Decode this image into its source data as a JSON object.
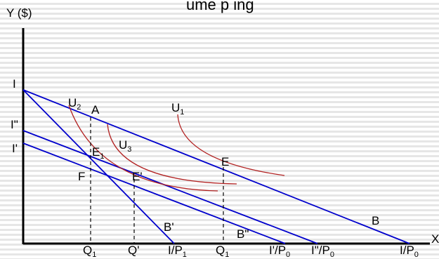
{
  "header_fragment": "ume p ing",
  "axes": {
    "y_label": "Y ($)",
    "x_label": "X"
  },
  "colors": {
    "budget": "#0000cc",
    "indifference": "#b22222",
    "axis": "#000000",
    "guide": "#000000"
  },
  "labels": {
    "I": "I",
    "I2": "I\"",
    "I1": "I'",
    "U1": "U",
    "U1_sub": "1",
    "U2": "U",
    "U2_sub": "2",
    "U3": "U",
    "U3_sub": "3",
    "A": "A",
    "E": "E",
    "E1": "E",
    "E1_sub": "1",
    "Eprime": "E'",
    "F": "F",
    "B": "B",
    "Bprime": "B'",
    "Bdouble": "B\"",
    "Q1a": "Q",
    "Q1a_sub": "1",
    "Qprime": "Q'",
    "Q1b": "Q",
    "Q1b_sub": "1",
    "IP1": "I/P",
    "IP1_sub": "1",
    "I1P0": "I'/P",
    "I1P0_sub": "0",
    "I2P0": "I\"/P",
    "I2P0_sub": "0",
    "IP0": "I/P",
    "IP0_sub": "0"
  }
}
